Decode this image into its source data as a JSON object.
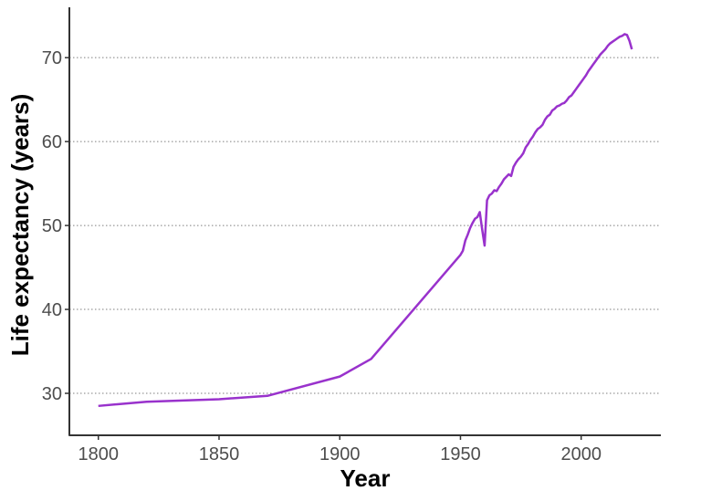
{
  "chart_data": {
    "type": "line",
    "title": "",
    "xlabel": "Year",
    "ylabel": "Life expectancy (years)",
    "xlim": [
      1788,
      2033
    ],
    "ylim": [
      25,
      76
    ],
    "xticks": [
      1800,
      1850,
      1900,
      1950,
      2000
    ],
    "yticks": [
      30,
      40,
      50,
      60,
      70
    ],
    "grid": "horizontal-dotted",
    "legend": "none",
    "line_color": "#9932CC",
    "series": [
      {
        "x": [
          1800,
          1820,
          1850,
          1870,
          1900,
          1913,
          1950,
          1951,
          1952,
          1953,
          1954,
          1955,
          1956,
          1957,
          1958,
          1959,
          1960,
          1961,
          1962,
          1963,
          1964,
          1965,
          1966,
          1967,
          1968,
          1969,
          1970,
          1971,
          1972,
          1973,
          1974,
          1975,
          1976,
          1977,
          1978,
          1979,
          1980,
          1981,
          1982,
          1983,
          1984,
          1985,
          1986,
          1987,
          1988,
          1989,
          1990,
          1991,
          1992,
          1993,
          1994,
          1995,
          1996,
          1997,
          1998,
          1999,
          2000,
          2001,
          2002,
          2003,
          2004,
          2005,
          2006,
          2007,
          2008,
          2009,
          2010,
          2011,
          2012,
          2013,
          2014,
          2015,
          2016,
          2017,
          2018,
          2019,
          2020,
          2021
        ],
        "y": [
          28.5,
          29.0,
          29.3,
          29.7,
          32.0,
          34.1,
          46.5,
          47.0,
          48.2,
          48.9,
          49.7,
          50.3,
          50.8,
          51.0,
          51.6,
          49.5,
          47.6,
          53.0,
          53.6,
          53.8,
          54.2,
          54.1,
          54.6,
          55.0,
          55.5,
          55.8,
          56.1,
          55.9,
          57.0,
          57.5,
          57.9,
          58.2,
          58.6,
          59.3,
          59.7,
          60.2,
          60.6,
          61.1,
          61.5,
          61.7,
          62.0,
          62.6,
          63.0,
          63.2,
          63.7,
          63.9,
          64.2,
          64.3,
          64.5,
          64.6,
          64.9,
          65.3,
          65.5,
          65.9,
          66.3,
          66.7,
          67.1,
          67.5,
          67.9,
          68.4,
          68.8,
          69.2,
          69.6,
          70.0,
          70.4,
          70.7,
          71.0,
          71.4,
          71.7,
          71.9,
          72.1,
          72.3,
          72.5,
          72.6,
          72.8,
          72.7,
          72.0,
          71.0
        ]
      }
    ]
  }
}
